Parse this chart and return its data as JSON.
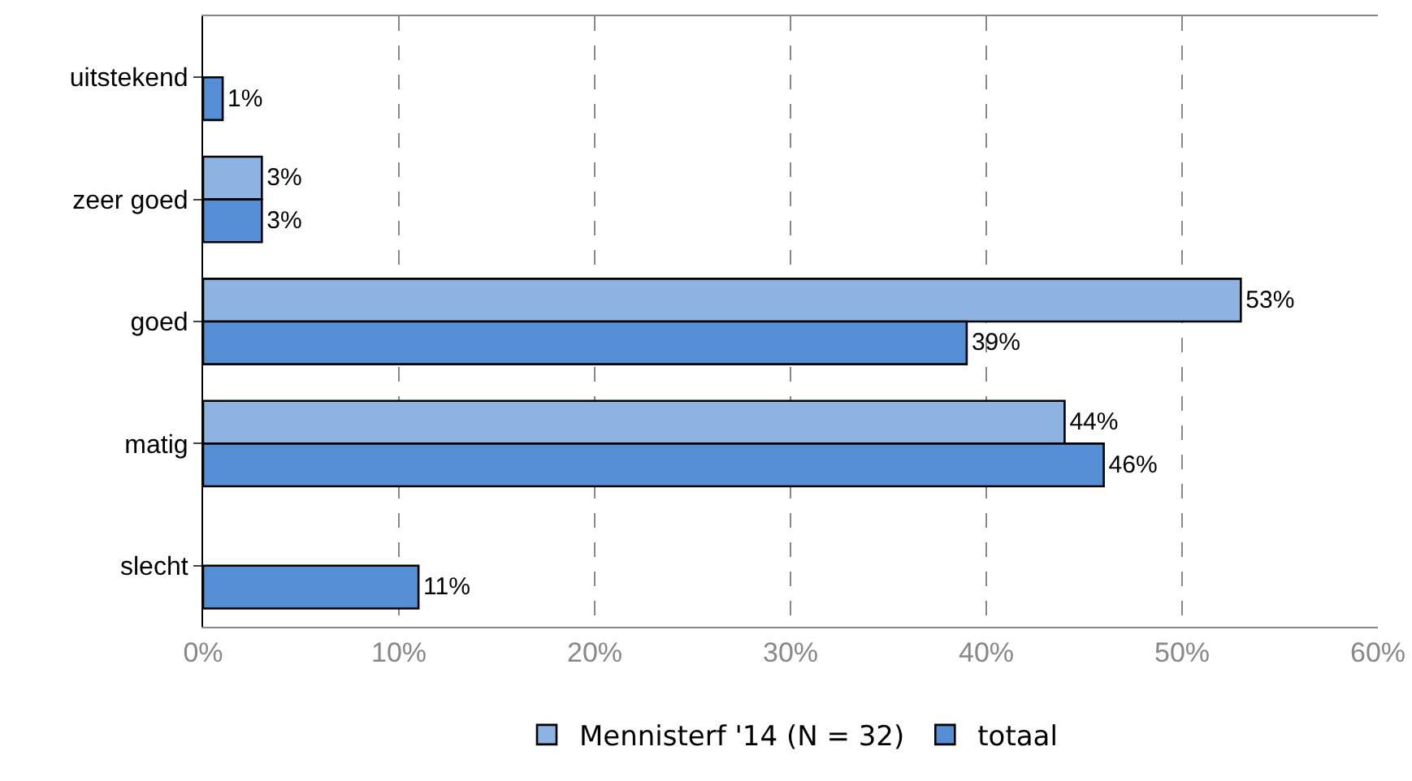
{
  "chart_data": {
    "type": "bar",
    "orientation": "horizontal",
    "categories": [
      "uitstekend",
      "zeer goed",
      "goed",
      "matig",
      "slecht"
    ],
    "series": [
      {
        "name": "Mennisterf '14 (N = 32)",
        "color": "#8db3e2",
        "values": [
          null,
          3,
          53,
          44,
          null
        ],
        "value_labels": [
          null,
          "3%",
          "53%",
          "44%",
          null
        ]
      },
      {
        "name": "totaal",
        "color": "#558ed5",
        "values": [
          1,
          3,
          39,
          46,
          11
        ],
        "value_labels": [
          "1%",
          "3%",
          "39%",
          "46%",
          "11%"
        ]
      }
    ],
    "xlim": [
      0,
      60
    ],
    "xticks": [
      {
        "value": 0,
        "label": "0%"
      },
      {
        "value": 10,
        "label": "10%"
      },
      {
        "value": 20,
        "label": "20%"
      },
      {
        "value": 30,
        "label": "30%"
      },
      {
        "value": 40,
        "label": "40%"
      },
      {
        "value": 50,
        "label": "50%"
      },
      {
        "value": 60,
        "label": "60%"
      }
    ],
    "grid": "x",
    "legend": "bottom"
  }
}
